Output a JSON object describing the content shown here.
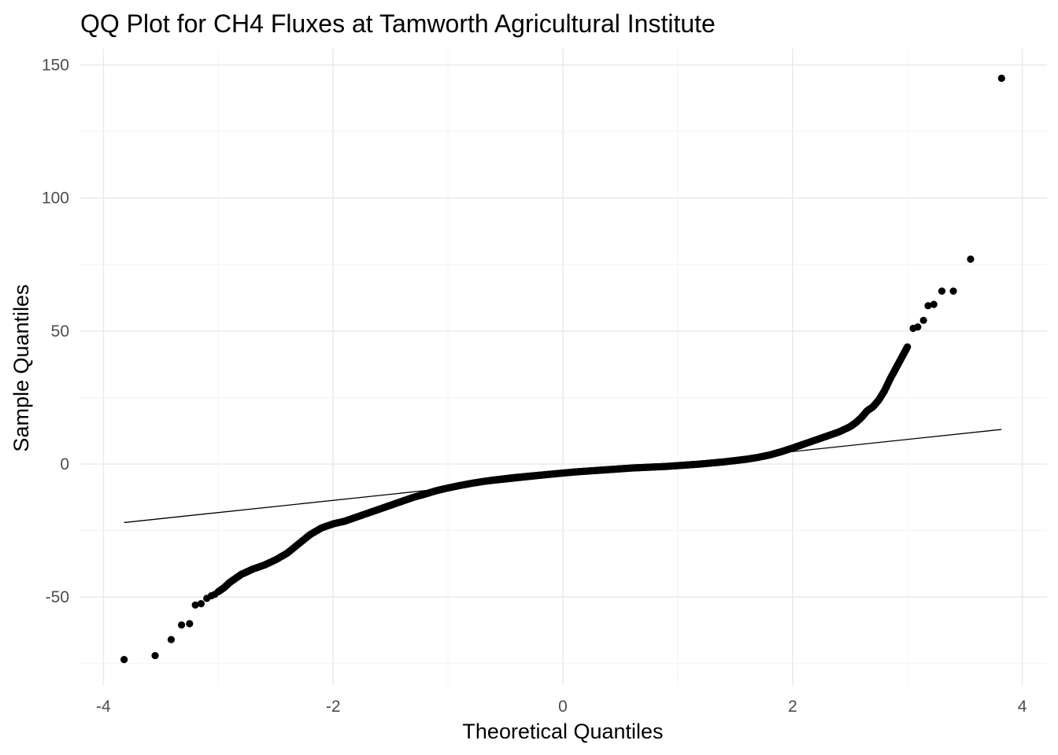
{
  "chart_data": {
    "type": "scatter",
    "title": "QQ Plot for CH4 Fluxes at Tamworth Agricultural Institute",
    "xlabel": "Theoretical Quantiles",
    "ylabel": "Sample Quantiles",
    "xlim": [
      -4,
      4
    ],
    "ylim": [
      -75,
      150
    ],
    "x_ticks": [
      -4,
      -2,
      0,
      2,
      4
    ],
    "y_ticks": [
      -50,
      0,
      50,
      100,
      150
    ],
    "x_tick_labels": [
      "-4",
      "-2",
      "0",
      "2",
      "4"
    ],
    "y_tick_labels": [
      "-50",
      "0",
      "50",
      "100",
      "150"
    ],
    "grid": true,
    "legend": "none",
    "point_color": "#000000",
    "reference_line": {
      "x": [
        -3.82,
        3.82
      ],
      "y": [
        -22,
        13
      ]
    },
    "sample_curve": [
      [
        -3.0,
        -48
      ],
      [
        -2.95,
        -46.5
      ],
      [
        -2.9,
        -44.5
      ],
      [
        -2.85,
        -43
      ],
      [
        -2.8,
        -41.5
      ],
      [
        -2.75,
        -40.5
      ],
      [
        -2.7,
        -39.5
      ],
      [
        -2.6,
        -38
      ],
      [
        -2.5,
        -36
      ],
      [
        -2.4,
        -33.5
      ],
      [
        -2.3,
        -30
      ],
      [
        -2.2,
        -26.5
      ],
      [
        -2.1,
        -24
      ],
      [
        -2.0,
        -22.5
      ],
      [
        -1.9,
        -21.5
      ],
      [
        -1.8,
        -20
      ],
      [
        -1.7,
        -18.5
      ],
      [
        -1.6,
        -17
      ],
      [
        -1.5,
        -15.5
      ],
      [
        -1.4,
        -14
      ],
      [
        -1.3,
        -12.5
      ],
      [
        -1.2,
        -11.3
      ],
      [
        -1.1,
        -10
      ],
      [
        -1.0,
        -9
      ],
      [
        -0.9,
        -8.1
      ],
      [
        -0.8,
        -7.3
      ],
      [
        -0.7,
        -6.6
      ],
      [
        -0.6,
        -6
      ],
      [
        -0.5,
        -5.5
      ],
      [
        -0.4,
        -5
      ],
      [
        -0.3,
        -4.6
      ],
      [
        -0.2,
        -4.2
      ],
      [
        -0.1,
        -3.8
      ],
      [
        0.0,
        -3.4
      ],
      [
        0.1,
        -3
      ],
      [
        0.2,
        -2.7
      ],
      [
        0.3,
        -2.4
      ],
      [
        0.4,
        -2.1
      ],
      [
        0.5,
        -1.8
      ],
      [
        0.6,
        -1.5
      ],
      [
        0.7,
        -1.3
      ],
      [
        0.8,
        -1.1
      ],
      [
        0.9,
        -0.9
      ],
      [
        1.0,
        -0.6
      ],
      [
        1.1,
        -0.3
      ],
      [
        1.2,
        0
      ],
      [
        1.3,
        0.4
      ],
      [
        1.4,
        0.8
      ],
      [
        1.5,
        1.3
      ],
      [
        1.6,
        1.8
      ],
      [
        1.7,
        2.5
      ],
      [
        1.8,
        3.4
      ],
      [
        1.9,
        4.6
      ],
      [
        2.0,
        6
      ],
      [
        2.1,
        7.5
      ],
      [
        2.2,
        9
      ],
      [
        2.3,
        10.5
      ],
      [
        2.4,
        12
      ],
      [
        2.5,
        14
      ],
      [
        2.55,
        15.5
      ],
      [
        2.6,
        17.5
      ],
      [
        2.65,
        20
      ],
      [
        2.7,
        21.5
      ],
      [
        2.75,
        24
      ],
      [
        2.8,
        27.5
      ],
      [
        2.85,
        32
      ],
      [
        2.9,
        36
      ],
      [
        2.95,
        40
      ],
      [
        3.0,
        44
      ]
    ],
    "tail_points": [
      [
        -3.82,
        -73.5
      ],
      [
        -3.55,
        -72
      ],
      [
        -3.41,
        -66
      ],
      [
        -3.32,
        -60.5
      ],
      [
        -3.25,
        -60
      ],
      [
        -3.2,
        -53
      ],
      [
        -3.15,
        -52.5
      ],
      [
        -3.1,
        -50.5
      ],
      [
        -3.06,
        -49.5
      ],
      [
        -3.03,
        -49
      ],
      [
        3.05,
        51
      ],
      [
        3.09,
        51.5
      ],
      [
        3.14,
        54
      ],
      [
        3.18,
        59.5
      ],
      [
        3.23,
        60
      ],
      [
        3.3,
        65
      ],
      [
        3.4,
        65
      ],
      [
        3.55,
        77
      ],
      [
        3.82,
        145
      ]
    ]
  }
}
